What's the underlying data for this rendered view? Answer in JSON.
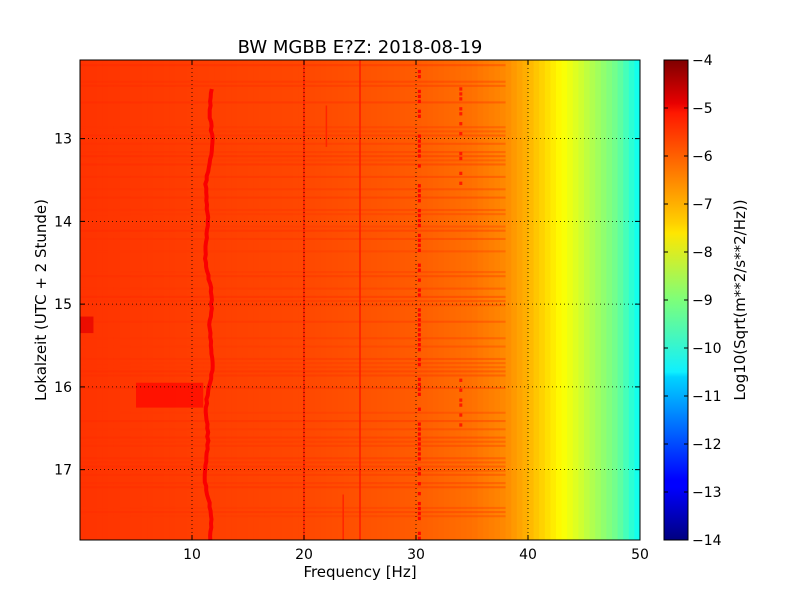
{
  "chart_data": {
    "type": "heatmap",
    "title": "BW MGBB E?Z: 2018-08-19",
    "xlabel": "Frequency [Hz]",
    "ylabel": "Lokalzeit (UTC + 2 Stunde)",
    "xlim": [
      0,
      50
    ],
    "ylim_hours": [
      12.05,
      17.85
    ],
    "y_inverted": true,
    "x_ticks": [
      10,
      20,
      30,
      40,
      50
    ],
    "y_ticks": [
      13,
      14,
      15,
      16,
      17
    ],
    "grid": true,
    "colormap": "jet",
    "colorbar": {
      "label": "Log10(Sqrt(m**2/s**2/Hz))",
      "range": [
        -14,
        -4
      ],
      "ticks": [
        -4,
        -5,
        -6,
        -7,
        -8,
        -9,
        -10,
        -11,
        -12,
        -13,
        -14
      ]
    },
    "background_level_profile": [
      {
        "freq_hz": 0,
        "log10_amp": -5.75
      },
      {
        "freq_hz": 10,
        "log10_amp": -5.85
      },
      {
        "freq_hz": 20,
        "log10_amp": -5.95
      },
      {
        "freq_hz": 30,
        "log10_amp": -6.15
      },
      {
        "freq_hz": 35,
        "log10_amp": -6.35
      },
      {
        "freq_hz": 38,
        "log10_amp": -6.6
      },
      {
        "freq_hz": 40,
        "log10_amp": -7.0
      },
      {
        "freq_hz": 42,
        "log10_amp": -7.5
      },
      {
        "freq_hz": 44,
        "log10_amp": -8.0
      },
      {
        "freq_hz": 46,
        "log10_amp": -8.6
      },
      {
        "freq_hz": 48,
        "log10_amp": -9.2
      },
      {
        "freq_hz": 50,
        "log10_amp": -10.2
      }
    ],
    "spectral_lines": [
      {
        "freq_hz": 11.5,
        "log10_amp": -5.2,
        "hours": [
          12.4,
          17.85
        ],
        "wandering": true
      },
      {
        "freq_hz": 20.0,
        "log10_amp": -5.5,
        "hours": [
          12.05,
          17.85
        ]
      },
      {
        "freq_hz": 25.0,
        "log10_amp": -5.5,
        "hours": [
          12.05,
          17.85
        ]
      },
      {
        "freq_hz": 30.3,
        "log10_amp": -5.3,
        "hours": [
          12.05,
          17.85
        ],
        "intermittent": true
      },
      {
        "freq_hz": 34.0,
        "log10_amp": -5.5,
        "hours": [
          12.2,
          13.6
        ],
        "intermittent": true
      },
      {
        "freq_hz": 34.0,
        "log10_amp": -5.5,
        "hours": [
          15.9,
          16.5
        ],
        "intermittent": true
      },
      {
        "freq_hz": 22.0,
        "log10_amp": -5.6,
        "hours": [
          12.6,
          13.1
        ]
      },
      {
        "freq_hz": 23.5,
        "log10_amp": -5.6,
        "hours": [
          17.3,
          17.85
        ]
      }
    ],
    "events": [
      {
        "freq_hz": [
          0,
          1.2
        ],
        "hours": [
          15.15,
          15.35
        ],
        "log10_amp": -5.0
      },
      {
        "freq_hz": [
          5,
          11
        ],
        "hours": [
          15.95,
          16.25
        ],
        "log10_amp": -5.3
      }
    ]
  }
}
